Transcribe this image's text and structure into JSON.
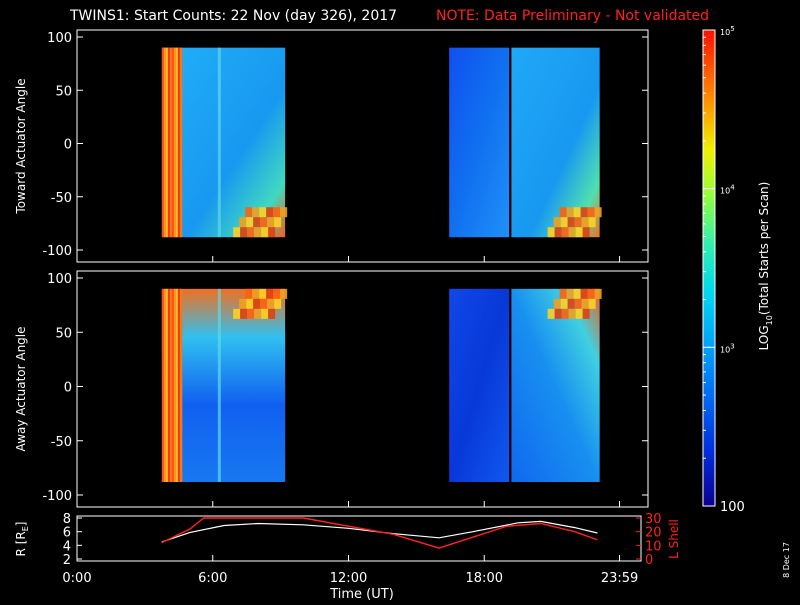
{
  "header": {
    "title": "TWINS1: Start Counts: 22 Nov (day 326), 2017",
    "note": "NOTE: Data Preliminary - Not validated"
  },
  "colors": {
    "background": "#000000",
    "foreground": "#ffffff",
    "note": "#ff2020",
    "l_shell": "#ff2020",
    "r_line": "#ffffff"
  },
  "panels": [
    {
      "name": "toward",
      "ylabel": "Toward Actuator Angle",
      "yticks": [
        "100",
        "50",
        "0",
        "-50",
        "-100"
      ]
    },
    {
      "name": "away",
      "ylabel": "Away Actuator Angle",
      "yticks": [
        "100",
        "50",
        "0",
        "-50",
        "-100"
      ]
    }
  ],
  "colorbar": {
    "label": "LOG10(Total Starts per Scan)",
    "label_parts": [
      "LOG",
      "10",
      "(Total Starts per Scan)"
    ],
    "ticks": [
      {
        "base": "10",
        "exp": "5",
        "value": 100000
      },
      {
        "base": "10",
        "exp": "4",
        "value": 10000
      },
      {
        "base": "10",
        "exp": "3",
        "value": 1000
      },
      {
        "base": "100",
        "exp": "",
        "value": 100
      }
    ],
    "scale": "log"
  },
  "bottom_panel": {
    "left_label": "R [RE]",
    "left_label_parts": [
      "R [R",
      "E",
      "]"
    ],
    "left_ticks": [
      "8",
      "6",
      "4",
      "2"
    ],
    "right_label": "L Shell",
    "right_ticks": [
      "30",
      "20",
      "10",
      "0"
    ]
  },
  "xaxis": {
    "label": "Time (UT)",
    "ticks": [
      "0:00",
      "6:00",
      "12:00",
      "18:00",
      "23:59"
    ]
  },
  "footer": {
    "date_stamp": "8 Dec 17"
  },
  "chart_data": [
    {
      "type": "heatmap",
      "title": "TWINS1: Start Counts: 22 Nov (day 326), 2017",
      "panel": "Toward Actuator Angle",
      "x_unit": "hours UT",
      "xlim": [
        0,
        24
      ],
      "ylim": [
        -100,
        100
      ],
      "ylabel": "Toward Actuator Angle",
      "colorscale": "log",
      "clim": [
        100,
        100000
      ],
      "data_intervals_hours": [
        [
          3.75,
          9.2
        ],
        [
          16.45,
          23.1
        ]
      ],
      "gaps_hours": [
        [
          19.1,
          19.2
        ]
      ],
      "angle_range": [
        -88,
        90
      ]
    },
    {
      "type": "heatmap",
      "panel": "Away Actuator Angle",
      "x_unit": "hours UT",
      "xlim": [
        0,
        24
      ],
      "ylim": [
        -100,
        100
      ],
      "ylabel": "Away Actuator Angle",
      "colorscale": "log",
      "clim": [
        100,
        100000
      ],
      "data_intervals_hours": [
        [
          3.75,
          9.2
        ],
        [
          16.45,
          23.1
        ]
      ],
      "gaps_hours": [
        [
          19.1,
          19.2
        ]
      ],
      "angle_range": [
        -88,
        90
      ]
    },
    {
      "type": "line",
      "xlabel": "Time (UT)",
      "x_unit": "hours UT",
      "xlim": [
        0,
        24
      ],
      "series": [
        {
          "name": "R [RE]",
          "axis": "left",
          "ylim": [
            2,
            8
          ],
          "x": [
            3.75,
            5.0,
            6.5,
            8.0,
            10.0,
            12.0,
            14.0,
            16.0,
            17.5,
            19.5,
            20.5,
            22.0,
            23.0
          ],
          "y": [
            4.5,
            5.9,
            6.9,
            7.2,
            7.0,
            6.5,
            5.7,
            5.1,
            6.0,
            7.3,
            7.5,
            6.6,
            5.8
          ]
        },
        {
          "name": "L Shell",
          "axis": "right",
          "ylim": [
            0,
            30
          ],
          "x": [
            3.75,
            5.0,
            5.6,
            10.0,
            14.0,
            16.0,
            19.0,
            20.5,
            22.0,
            23.0
          ],
          "y": [
            12,
            22,
            30,
            30,
            18,
            8,
            24,
            26,
            20,
            14
          ]
        }
      ]
    }
  ]
}
